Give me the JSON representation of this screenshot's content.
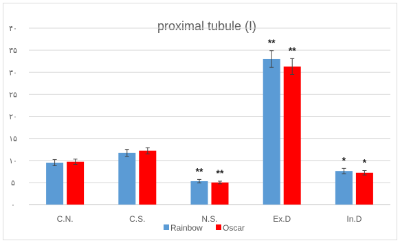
{
  "chart_data": {
    "type": "bar",
    "title": "proximal tubule (I)",
    "xlabel": "",
    "ylabel": "",
    "categories": [
      "C.N.",
      "C.S.",
      "N.S.",
      "Ex.D",
      "In.D"
    ],
    "y_tick_labels": [
      "٠",
      "۵",
      "١٠",
      "١۵",
      "٢٠",
      "٢۵",
      "٣٠",
      "٣۵",
      "۴٠"
    ],
    "y_ticks": [
      0,
      5,
      10,
      15,
      20,
      25,
      30,
      35,
      40
    ],
    "ylim": [
      0,
      40
    ],
    "grid": true,
    "legend_position": "bottom",
    "series": [
      {
        "name": "Rainbow",
        "color": "#5b9bd5",
        "values": [
          9.5,
          11.7,
          5.3,
          33.0,
          7.6
        ],
        "errors": [
          0.7,
          0.8,
          0.4,
          1.9,
          0.6
        ],
        "significance": [
          "",
          "",
          "**",
          "**",
          "*"
        ]
      },
      {
        "name": "Oscar",
        "color": "#ff0000",
        "values": [
          9.7,
          12.2,
          5.0,
          31.3,
          7.2
        ],
        "errors": [
          0.6,
          0.7,
          0.3,
          1.8,
          0.5
        ],
        "significance": [
          "",
          "",
          "**",
          "**",
          "*"
        ]
      }
    ]
  }
}
